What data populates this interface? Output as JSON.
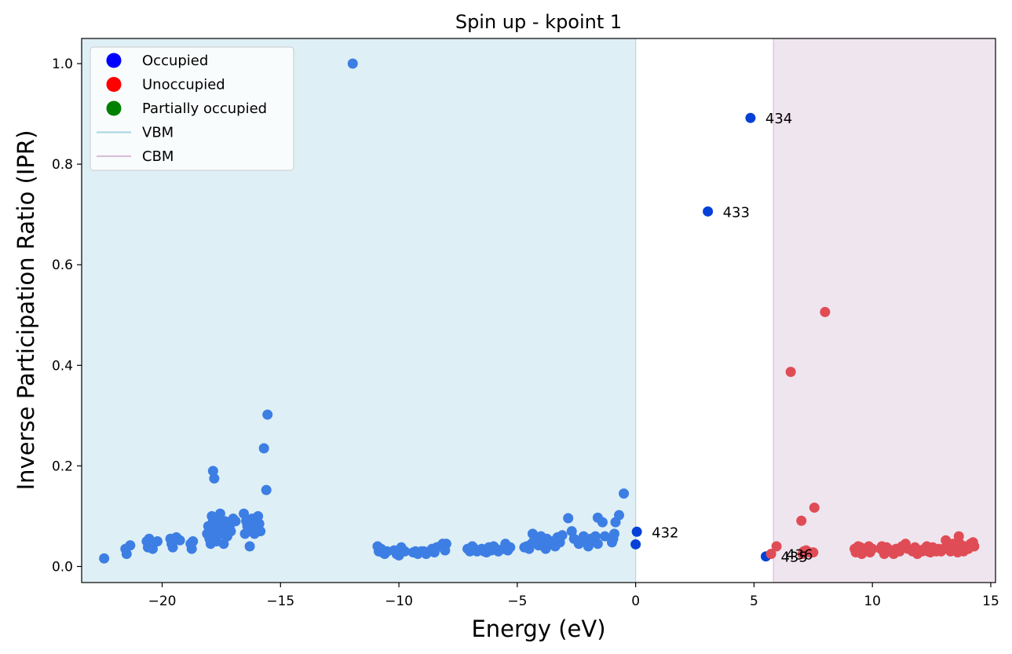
{
  "chart_data": {
    "type": "scatter",
    "title": "Spin up - kpoint 1",
    "xlabel": "Energy (eV)",
    "ylabel": "Inverse Participation Ratio (IPR)",
    "xlim": [
      -23.4,
      15.2
    ],
    "ylim": [
      -0.032,
      1.05
    ],
    "xticks": [
      -20,
      -15,
      -10,
      -5,
      0,
      5,
      10,
      15
    ],
    "xtick_labels": [
      "−20",
      "−15",
      "−10",
      "−5",
      "0",
      "5",
      "10",
      "15"
    ],
    "yticks": [
      0.0,
      0.2,
      0.4,
      0.6,
      0.8,
      1.0
    ],
    "ytick_labels": [
      "0.0",
      "0.2",
      "0.4",
      "0.6",
      "0.8",
      "1.0"
    ],
    "grid": false,
    "legend": {
      "placement": "top-left",
      "entries": [
        {
          "label": "Occupied",
          "marker": "dot",
          "color": "#0000ff"
        },
        {
          "label": "Unoccupied",
          "marker": "dot",
          "color": "#ff0000"
        },
        {
          "label": "Partially occupied",
          "marker": "dot",
          "color": "#008000"
        },
        {
          "label": "VBM",
          "marker": "line",
          "color": "#add8e6"
        },
        {
          "label": "CBM",
          "marker": "line",
          "color": "#d8bfd8"
        }
      ]
    },
    "regions": [
      {
        "label": "VBM",
        "from": -23.4,
        "to": 0.0,
        "color": "#add8e6"
      },
      {
        "label": "CBM",
        "from": 5.82,
        "to": 15.2,
        "color": "#d8bfd8"
      }
    ],
    "series": [
      {
        "color": "#3d7ee4",
        "points": [
          [
            -22.45,
            0.016
          ],
          [
            -21.55,
            0.035
          ],
          [
            -21.5,
            0.025
          ],
          [
            -21.35,
            0.042
          ],
          [
            -20.65,
            0.05
          ],
          [
            -20.6,
            0.038
          ],
          [
            -20.55,
            0.055
          ],
          [
            -20.45,
            0.045
          ],
          [
            -20.4,
            0.035
          ],
          [
            -20.2,
            0.05
          ],
          [
            -19.65,
            0.055
          ],
          [
            -19.6,
            0.045
          ],
          [
            -19.55,
            0.038
          ],
          [
            -19.4,
            0.058
          ],
          [
            -19.25,
            0.052
          ],
          [
            -18.8,
            0.045
          ],
          [
            -18.75,
            0.035
          ],
          [
            -18.7,
            0.05
          ],
          [
            -18.1,
            0.065
          ],
          [
            -18.05,
            0.08
          ],
          [
            -18.0,
            0.055
          ],
          [
            -17.95,
            0.045
          ],
          [
            -17.9,
            0.1
          ],
          [
            -17.85,
            0.09
          ],
          [
            -17.85,
            0.19
          ],
          [
            -17.8,
            0.175
          ],
          [
            -17.8,
            0.075
          ],
          [
            -17.75,
            0.06
          ],
          [
            -17.7,
            0.05
          ],
          [
            -17.65,
            0.095
          ],
          [
            -17.6,
            0.085
          ],
          [
            -17.55,
            0.105
          ],
          [
            -17.5,
            0.07
          ],
          [
            -17.45,
            0.065
          ],
          [
            -17.4,
            0.045
          ],
          [
            -17.35,
            0.09
          ],
          [
            -17.3,
            0.075
          ],
          [
            -17.25,
            0.06
          ],
          [
            -17.15,
            0.08
          ],
          [
            -17.1,
            0.07
          ],
          [
            -17.0,
            0.095
          ],
          [
            -16.9,
            0.09
          ],
          [
            -16.55,
            0.105
          ],
          [
            -16.5,
            0.065
          ],
          [
            -16.45,
            0.09
          ],
          [
            -16.4,
            0.08
          ],
          [
            -16.35,
            0.07
          ],
          [
            -16.3,
            0.04
          ],
          [
            -16.2,
            0.095
          ],
          [
            -16.15,
            0.085
          ],
          [
            -16.1,
            0.065
          ],
          [
            -16.05,
            0.075
          ],
          [
            -15.95,
            0.1
          ],
          [
            -15.9,
            0.085
          ],
          [
            -15.85,
            0.07
          ],
          [
            -15.7,
            0.235
          ],
          [
            -15.6,
            0.152
          ],
          [
            -15.55,
            0.302
          ],
          [
            -11.95,
            1.0
          ],
          [
            -10.9,
            0.04
          ],
          [
            -10.85,
            0.03
          ],
          [
            -10.75,
            0.035
          ],
          [
            -10.7,
            0.028
          ],
          [
            -10.6,
            0.025
          ],
          [
            -10.5,
            0.03
          ],
          [
            -10.2,
            0.032
          ],
          [
            -10.1,
            0.025
          ],
          [
            -10.0,
            0.022
          ],
          [
            -9.9,
            0.038
          ],
          [
            -9.75,
            0.03
          ],
          [
            -9.4,
            0.028
          ],
          [
            -9.3,
            0.03
          ],
          [
            -9.2,
            0.025
          ],
          [
            -9.05,
            0.03
          ],
          [
            -8.95,
            0.03
          ],
          [
            -8.85,
            0.025
          ],
          [
            -8.7,
            0.03
          ],
          [
            -8.6,
            0.035
          ],
          [
            -8.5,
            0.028
          ],
          [
            -8.4,
            0.038
          ],
          [
            -8.25,
            0.04
          ],
          [
            -8.15,
            0.045
          ],
          [
            -8.05,
            0.032
          ],
          [
            -8.0,
            0.045
          ],
          [
            -7.1,
            0.035
          ],
          [
            -7.0,
            0.03
          ],
          [
            -6.9,
            0.04
          ],
          [
            -6.8,
            0.035
          ],
          [
            -6.7,
            0.03
          ],
          [
            -6.5,
            0.035
          ],
          [
            -6.4,
            0.03
          ],
          [
            -6.3,
            0.028
          ],
          [
            -6.2,
            0.038
          ],
          [
            -6.1,
            0.032
          ],
          [
            -6.0,
            0.04
          ],
          [
            -5.9,
            0.035
          ],
          [
            -5.8,
            0.03
          ],
          [
            -5.6,
            0.035
          ],
          [
            -5.5,
            0.045
          ],
          [
            -5.4,
            0.032
          ],
          [
            -5.3,
            0.038
          ],
          [
            -4.7,
            0.038
          ],
          [
            -4.6,
            0.04
          ],
          [
            -4.5,
            0.035
          ],
          [
            -4.4,
            0.045
          ],
          [
            -4.35,
            0.065
          ],
          [
            -4.3,
            0.05
          ],
          [
            -4.2,
            0.055
          ],
          [
            -4.1,
            0.042
          ],
          [
            -4.0,
            0.06
          ],
          [
            -3.95,
            0.045
          ],
          [
            -3.9,
            0.052
          ],
          [
            -3.8,
            0.035
          ],
          [
            -3.75,
            0.055
          ],
          [
            -3.6,
            0.045
          ],
          [
            -3.5,
            0.05
          ],
          [
            -3.4,
            0.04
          ],
          [
            -3.3,
            0.058
          ],
          [
            -3.2,
            0.048
          ],
          [
            -3.1,
            0.062
          ],
          [
            -2.85,
            0.096
          ],
          [
            -2.7,
            0.07
          ],
          [
            -2.6,
            0.055
          ],
          [
            -2.4,
            0.045
          ],
          [
            -2.3,
            0.05
          ],
          [
            -2.2,
            0.06
          ],
          [
            -2.1,
            0.055
          ],
          [
            -2.0,
            0.04
          ],
          [
            -1.9,
            0.055
          ],
          [
            -1.8,
            0.05
          ],
          [
            -1.7,
            0.06
          ],
          [
            -1.6,
            0.045
          ],
          [
            -1.6,
            0.097
          ],
          [
            -1.4,
            0.088
          ],
          [
            -1.3,
            0.06
          ],
          [
            -1.0,
            0.048
          ],
          [
            -0.95,
            0.055
          ],
          [
            -0.9,
            0.065
          ],
          [
            -0.85,
            0.088
          ],
          [
            -0.7,
            0.102
          ],
          [
            -0.5,
            0.145
          ]
        ]
      },
      {
        "color": "#0541d8",
        "points": [
          [
            0.0,
            0.044
          ],
          [
            0.05,
            0.069
          ],
          [
            3.05,
            0.706
          ],
          [
            4.85,
            0.892
          ],
          [
            5.5,
            0.02
          ]
        ]
      },
      {
        "color": "#e04c55",
        "points": [
          [
            5.72,
            0.025
          ],
          [
            5.95,
            0.04
          ],
          [
            6.55,
            0.387
          ],
          [
            7.0,
            0.091
          ],
          [
            7.05,
            0.025
          ],
          [
            7.1,
            0.03
          ],
          [
            7.2,
            0.032
          ],
          [
            7.35,
            0.028
          ],
          [
            7.5,
            0.028
          ],
          [
            7.55,
            0.117
          ],
          [
            8.0,
            0.506
          ],
          [
            9.25,
            0.035
          ],
          [
            9.3,
            0.028
          ],
          [
            9.4,
            0.04
          ],
          [
            9.45,
            0.03
          ],
          [
            9.5,
            0.038
          ],
          [
            9.55,
            0.025
          ],
          [
            9.6,
            0.035
          ],
          [
            9.7,
            0.03
          ],
          [
            9.8,
            0.035
          ],
          [
            9.85,
            0.04
          ],
          [
            9.9,
            0.028
          ],
          [
            10.0,
            0.035
          ],
          [
            10.35,
            0.035
          ],
          [
            10.4,
            0.04
          ],
          [
            10.5,
            0.025
          ],
          [
            10.55,
            0.03
          ],
          [
            10.6,
            0.038
          ],
          [
            10.7,
            0.03
          ],
          [
            10.8,
            0.032
          ],
          [
            10.9,
            0.025
          ],
          [
            11.0,
            0.035
          ],
          [
            11.15,
            0.03
          ],
          [
            11.25,
            0.04
          ],
          [
            11.4,
            0.045
          ],
          [
            11.5,
            0.035
          ],
          [
            11.7,
            0.03
          ],
          [
            11.8,
            0.038
          ],
          [
            11.9,
            0.025
          ],
          [
            12.0,
            0.032
          ],
          [
            12.1,
            0.03
          ],
          [
            12.2,
            0.035
          ],
          [
            12.3,
            0.04
          ],
          [
            12.35,
            0.03
          ],
          [
            12.45,
            0.028
          ],
          [
            12.55,
            0.038
          ],
          [
            12.7,
            0.03
          ],
          [
            12.8,
            0.035
          ],
          [
            12.9,
            0.03
          ],
          [
            13.0,
            0.035
          ],
          [
            13.1,
            0.052
          ],
          [
            13.2,
            0.035
          ],
          [
            13.3,
            0.03
          ],
          [
            13.4,
            0.045
          ],
          [
            13.5,
            0.038
          ],
          [
            13.6,
            0.028
          ],
          [
            13.65,
            0.06
          ],
          [
            13.7,
            0.045
          ],
          [
            13.75,
            0.035
          ],
          [
            13.85,
            0.03
          ],
          [
            13.95,
            0.04
          ],
          [
            14.05,
            0.035
          ],
          [
            14.15,
            0.045
          ],
          [
            14.25,
            0.048
          ],
          [
            14.3,
            0.04
          ]
        ]
      }
    ],
    "annotations": [
      {
        "text": "432",
        "x": 0.05,
        "y": 0.069
      },
      {
        "text": "433",
        "x": 3.05,
        "y": 0.706
      },
      {
        "text": "434",
        "x": 4.85,
        "y": 0.892
      },
      {
        "text": "435",
        "x": 5.5,
        "y": 0.02
      },
      {
        "text": "436",
        "x": 5.72,
        "y": 0.025
      }
    ]
  }
}
